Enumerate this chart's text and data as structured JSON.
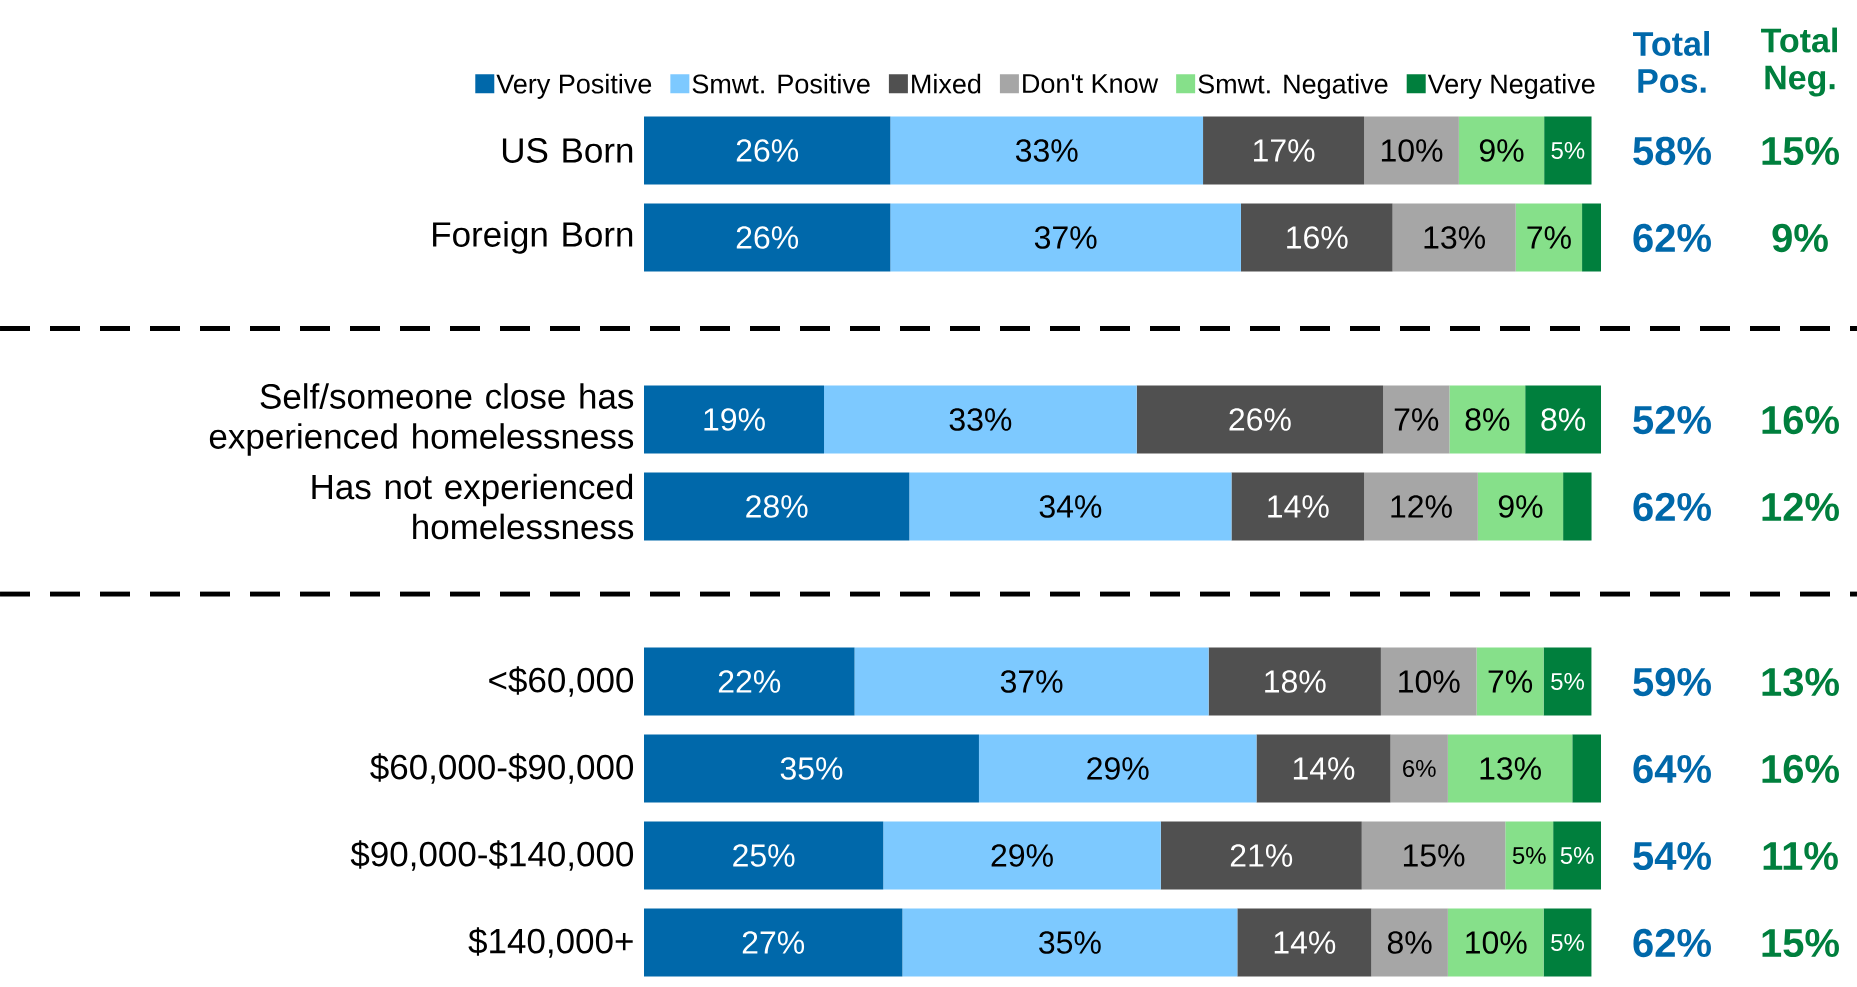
{
  "chart_data": [
    {
      "type": "bar",
      "orientation": "horizontal",
      "stacked": true,
      "legend": "top",
      "categories": [
        "US Born",
        "Foreign Born"
      ],
      "series": [
        {
          "name": "Very Positive",
          "color": "#0068aa",
          "values": [
            26,
            26
          ],
          "value_labels": [
            "26%",
            "26%"
          ]
        },
        {
          "name": "Smwt. Positive",
          "color": "#7dc9ff",
          "values": [
            33,
            37
          ],
          "value_labels": [
            "33%",
            "37%"
          ]
        },
        {
          "name": "Mixed",
          "color": "#505050",
          "values": [
            17,
            16
          ],
          "value_labels": [
            "17%",
            "16%"
          ]
        },
        {
          "name": "Don't Know",
          "color": "#a6a6a6",
          "values": [
            10,
            13
          ],
          "value_labels": [
            "10%",
            "13%"
          ]
        },
        {
          "name": "Smwt. Negative",
          "color": "#86e08a",
          "values": [
            9,
            7
          ],
          "value_labels": [
            "9%",
            "7%"
          ]
        },
        {
          "name": "Very Negative",
          "color": "#007f3d",
          "values": [
            5,
            2
          ],
          "value_labels": [
            "5%",
            null
          ]
        }
      ],
      "annotations": [
        "Total Pos.",
        "Total Neg.",
        "58%",
        "15%",
        "62%",
        "9%"
      ]
    },
    {
      "type": "bar",
      "orientation": "horizontal",
      "stacked": true,
      "categories": [
        "Self/someone close has experienced homelessness",
        "Has not experienced homelessness"
      ],
      "series": [
        {
          "color": "#0068aa",
          "values": [
            19,
            28
          ],
          "value_labels": [
            "19%",
            "28%"
          ]
        },
        {
          "color": "#7dc9ff",
          "values": [
            33,
            34
          ],
          "value_labels": [
            "33%",
            "34%"
          ]
        },
        {
          "color": "#505050",
          "values": [
            26,
            14
          ],
          "value_labels": [
            "26%",
            "14%"
          ]
        },
        {
          "color": "#a6a6a6",
          "values": [
            7,
            12
          ],
          "value_labels": [
            "7%",
            "12%"
          ]
        },
        {
          "color": "#86e08a",
          "values": [
            8,
            9
          ],
          "value_labels": [
            "8%",
            "9%"
          ]
        },
        {
          "color": "#007f3d",
          "values": [
            8,
            3
          ],
          "value_labels": [
            "8%",
            null
          ]
        }
      ],
      "annotations": [
        "52%",
        "16%",
        "62%",
        "12%"
      ]
    },
    {
      "type": "bar",
      "orientation": "horizontal",
      "stacked": true,
      "categories": [
        "<$60,000",
        "$60,000-$90,000",
        "$90,000-$140,000",
        "$140,000+"
      ],
      "series": [
        {
          "color": "#0068aa",
          "values": [
            22,
            35,
            25,
            27
          ],
          "value_labels": [
            "22%",
            "35%",
            "25%",
            "27%"
          ]
        },
        {
          "color": "#7dc9ff",
          "values": [
            37,
            29,
            29,
            35
          ],
          "value_labels": [
            "37%",
            "29%",
            "29%",
            "35%"
          ]
        },
        {
          "color": "#505050",
          "values": [
            18,
            14,
            21,
            14
          ],
          "value_labels": [
            "18%",
            "14%",
            "21%",
            "14%"
          ]
        },
        {
          "color": "#a6a6a6",
          "values": [
            10,
            6,
            15,
            8
          ],
          "value_labels": [
            "10%",
            "6%",
            "15%",
            "8%"
          ]
        },
        {
          "color": "#86e08a",
          "values": [
            7,
            13,
            5,
            10
          ],
          "value_labels": [
            "7%",
            "13%",
            "5%",
            "10%"
          ]
        },
        {
          "color": "#007f3d",
          "values": [
            5,
            3,
            5,
            5
          ],
          "value_labels": [
            "5%",
            null,
            "5%",
            "5%"
          ]
        }
      ],
      "annotations": [
        "59%",
        "13%",
        "64%",
        "16%",
        "54%",
        "11%",
        "62%",
        "15%"
      ]
    }
  ]
}
